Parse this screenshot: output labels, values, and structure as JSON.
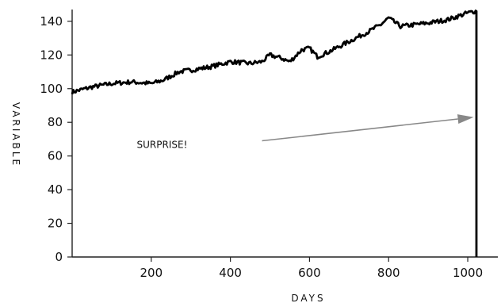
{
  "chart_data": {
    "type": "line",
    "title": "",
    "xlabel": "DAYS",
    "ylabel": "VARIABLE",
    "xlim": [
      0,
      1050
    ],
    "ylim": [
      0,
      147
    ],
    "xticks": [
      200,
      400,
      600,
      800,
      1000
    ],
    "yticks": [
      0,
      20,
      40,
      60,
      80,
      100,
      120,
      140
    ],
    "grid": false,
    "line_color": "#000000",
    "series": [
      {
        "x": [
          0,
          50,
          100,
          150,
          200,
          230,
          270,
          300,
          350,
          400,
          450,
          480,
          500,
          530,
          550,
          580,
          600,
          620,
          650,
          700,
          750,
          780,
          800,
          830,
          900,
          950,
          1000,
          1020,
          1022,
          1022
        ],
        "y": [
          98,
          101,
          103,
          104,
          103,
          105,
          110,
          111,
          113,
          116,
          115,
          116,
          120,
          118,
          116,
          123,
          124,
          119,
          122,
          128,
          134,
          138,
          142,
          137,
          139,
          141,
          145,
          146,
          146,
          0
        ]
      }
    ],
    "annotations": [
      {
        "text": "SURPRISE!",
        "arrow_from": [
          480,
          69
        ],
        "arrow_to": [
          1015,
          83
        ]
      }
    ]
  }
}
